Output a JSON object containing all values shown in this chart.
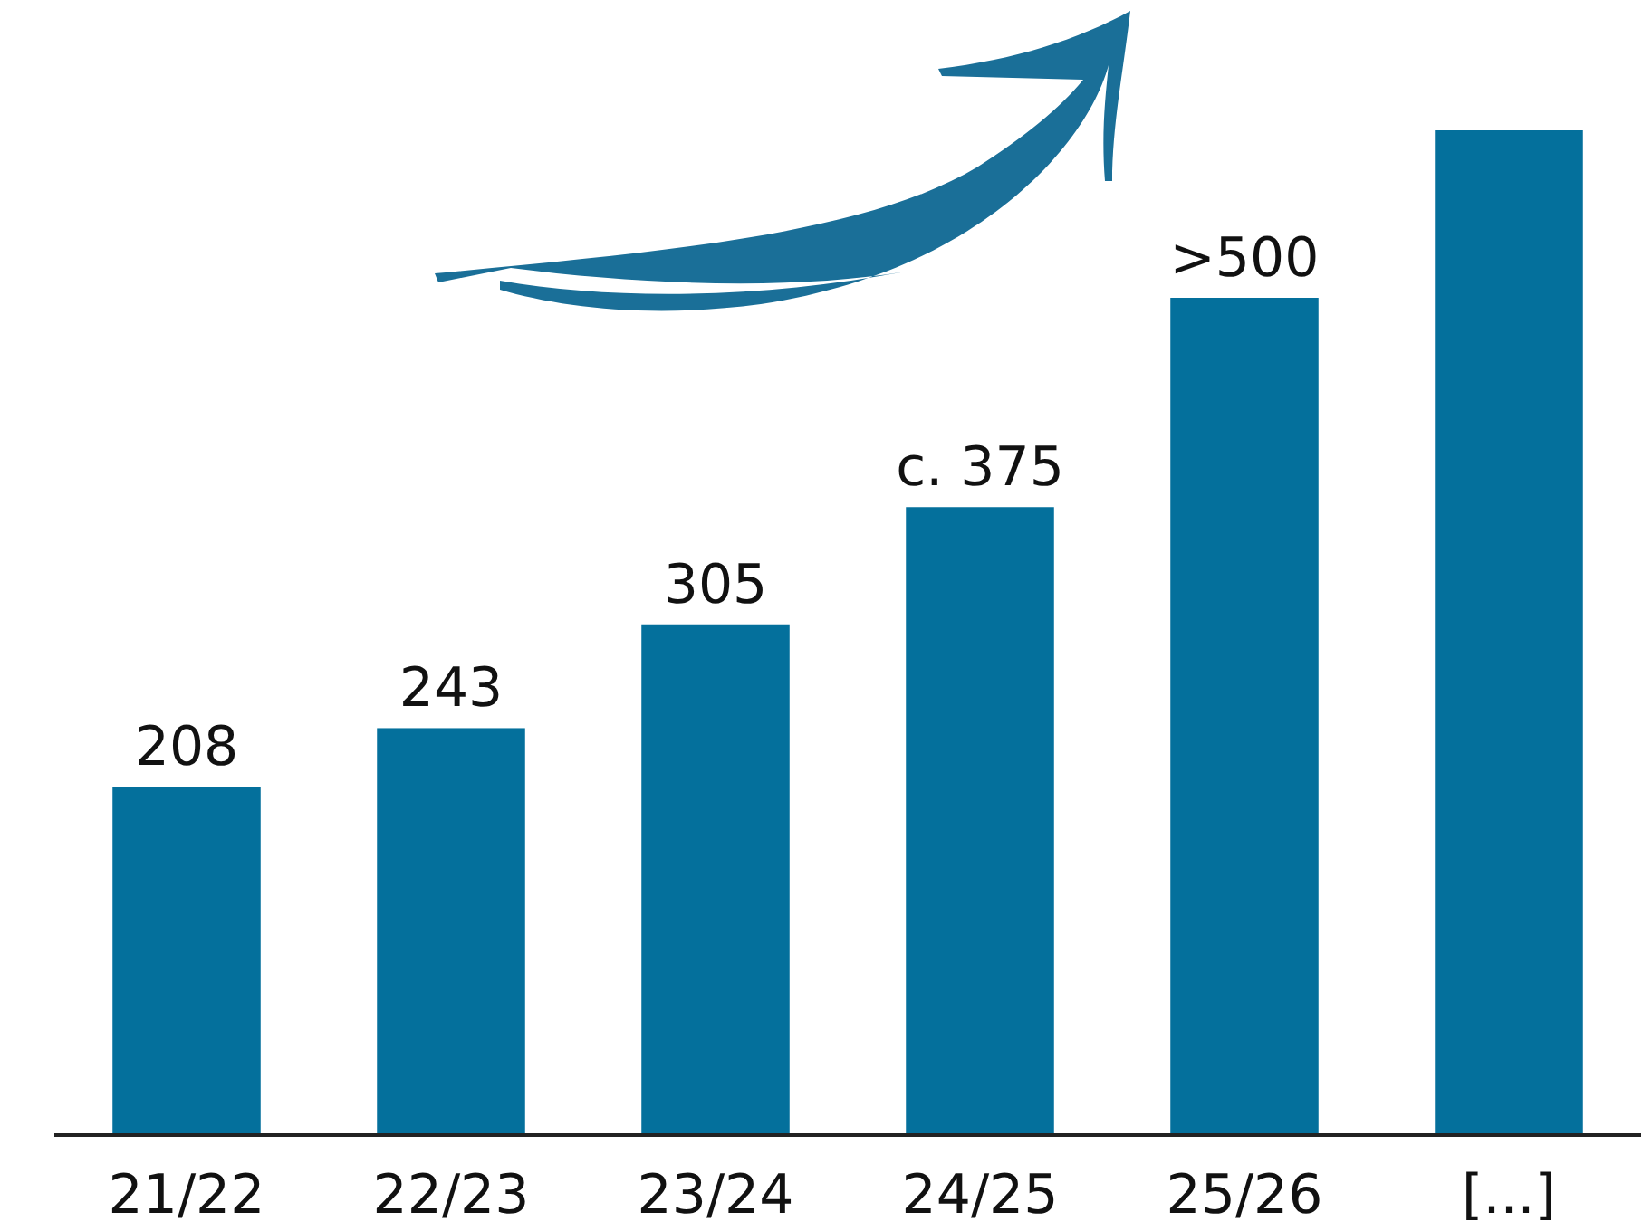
{
  "chart_data": {
    "type": "bar",
    "categories": [
      "21/22",
      "22/23",
      "23/24",
      "24/25",
      "25/26",
      "[...]"
    ],
    "values": [
      208,
      243,
      305,
      375,
      500,
      600
    ],
    "value_labels": [
      "208",
      "243",
      "305",
      "c. 375",
      ">500",
      null
    ],
    "color": "#04709c"
  }
}
